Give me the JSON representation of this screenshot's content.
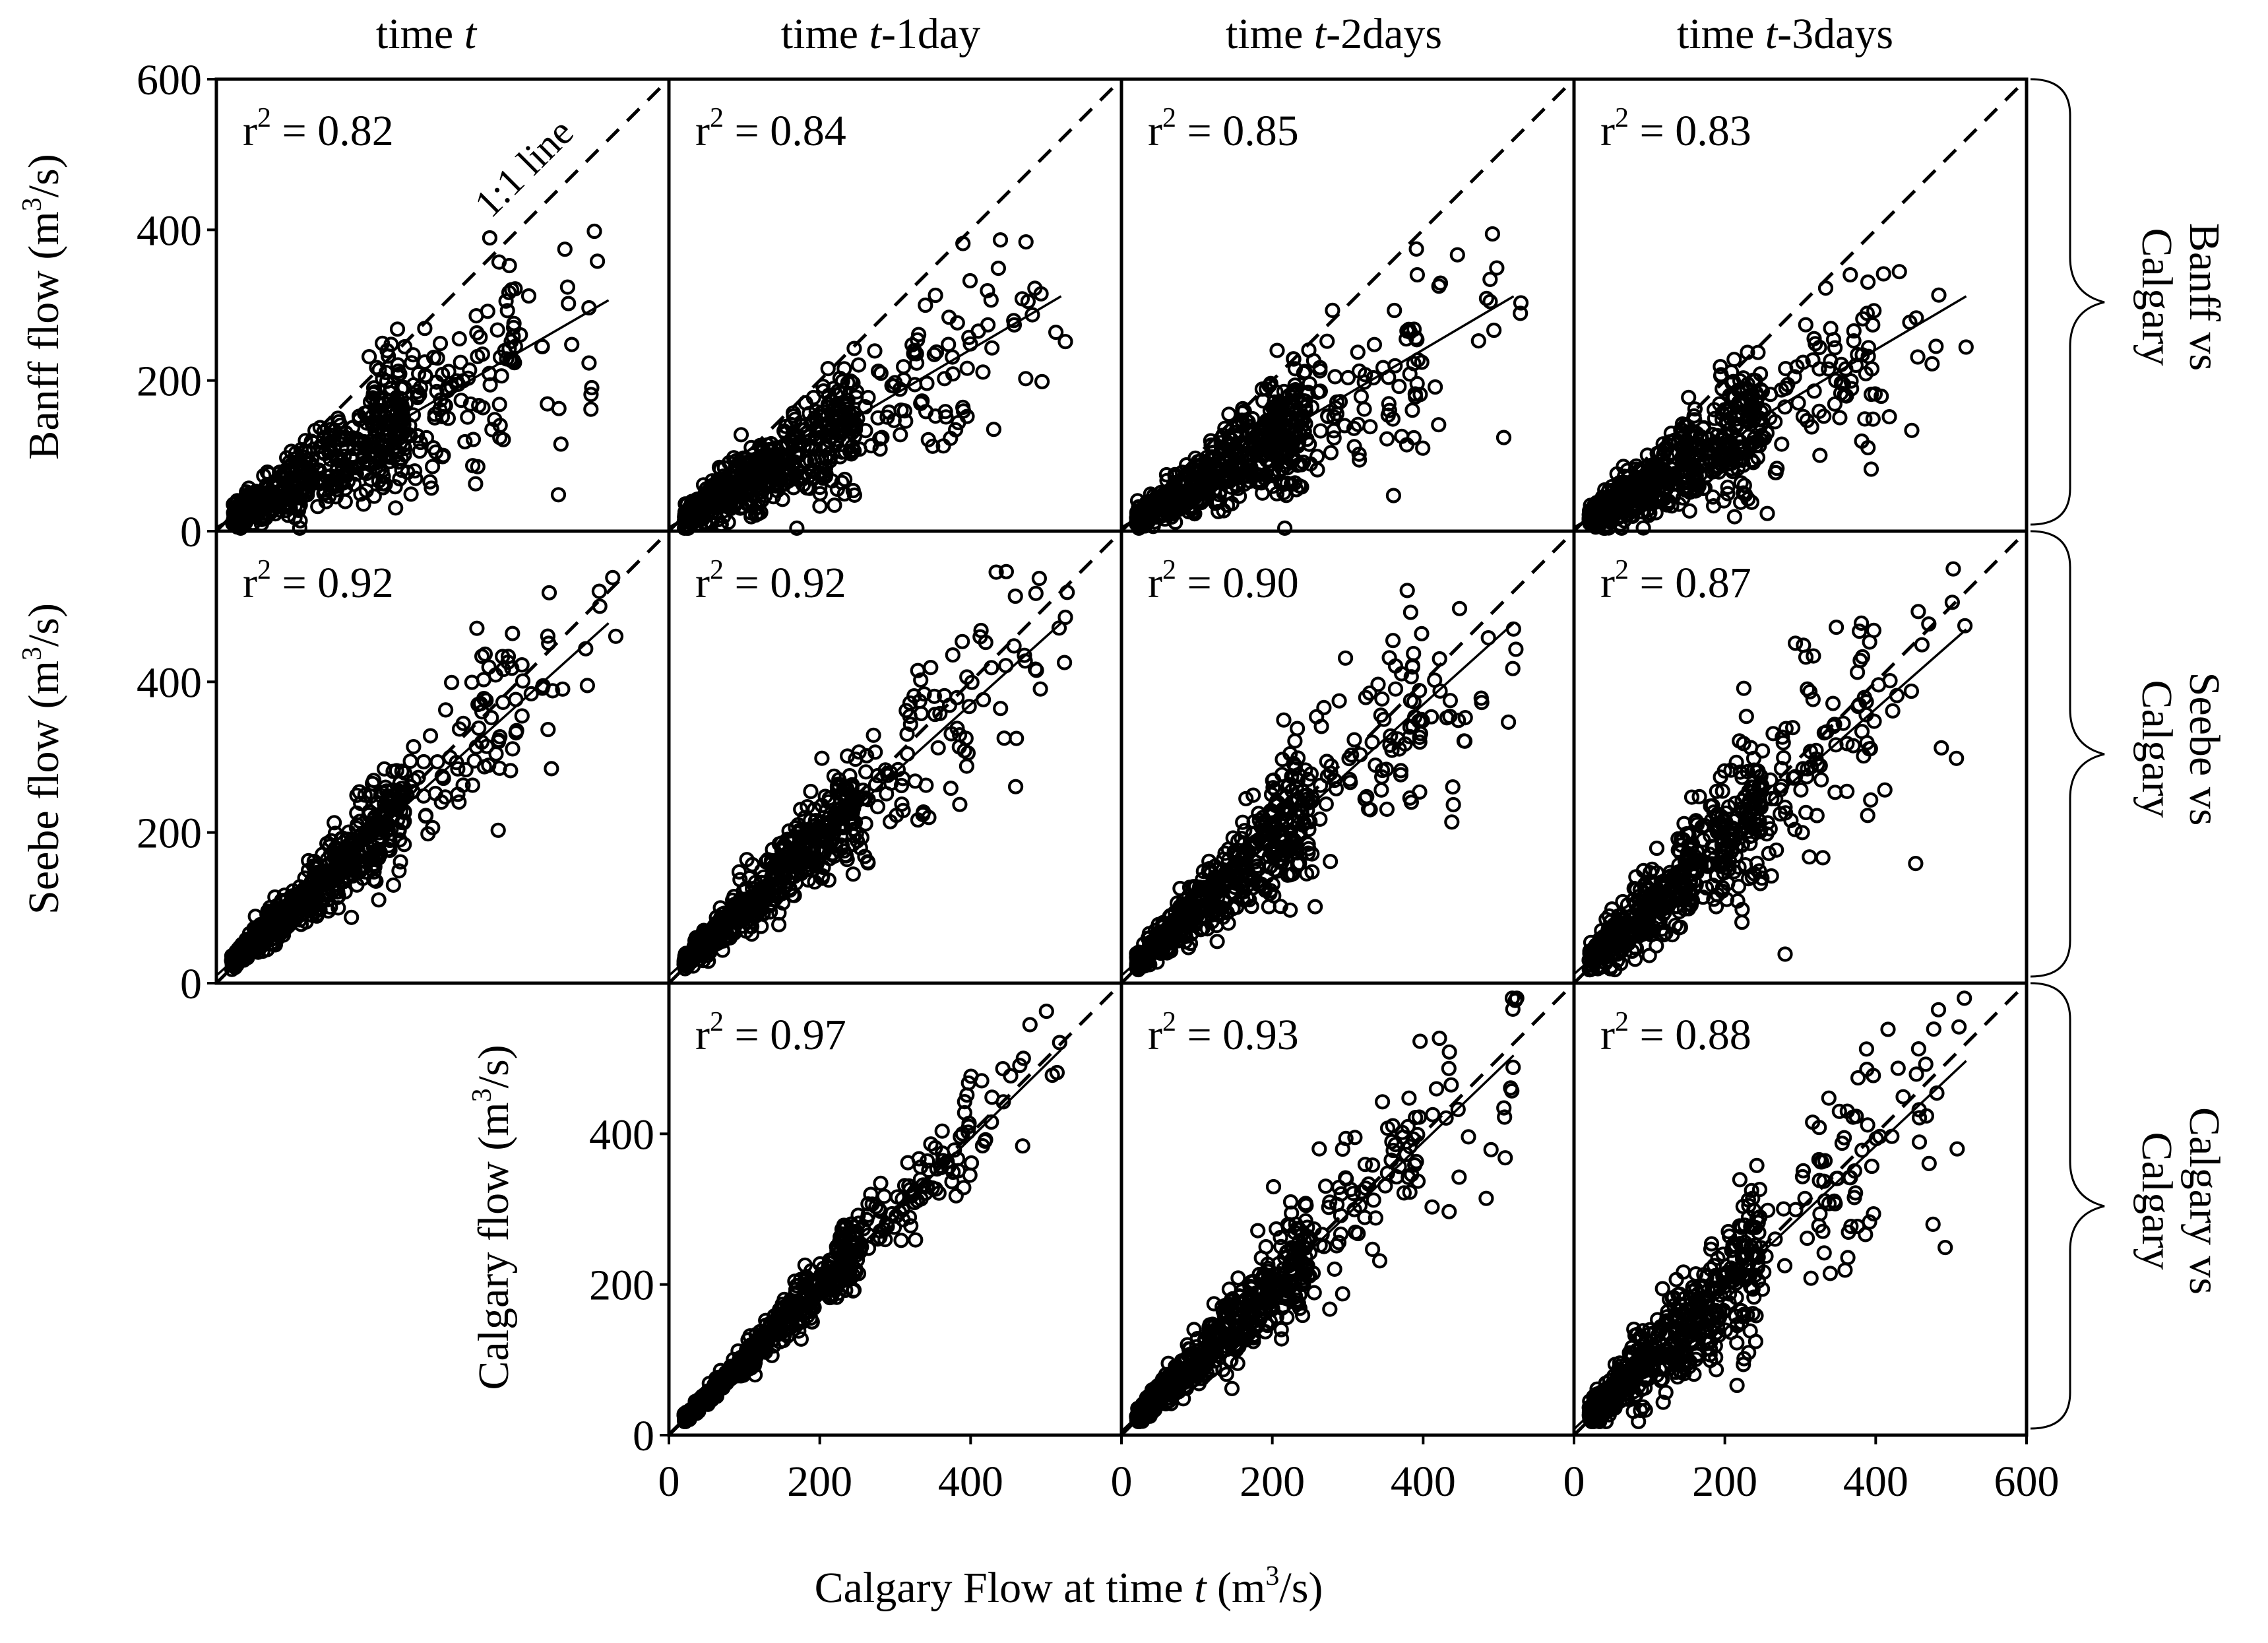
{
  "chart_data": {
    "type": "scatter",
    "title": "",
    "column_headers": [
      {
        "prefix": "time ",
        "italic": "t",
        "suffix": ""
      },
      {
        "prefix": "time ",
        "italic": "t",
        "suffix": "-1day"
      },
      {
        "prefix": "time ",
        "italic": "t",
        "suffix": "-2days"
      },
      {
        "prefix": "time ",
        "italic": "t",
        "suffix": "-3days"
      }
    ],
    "row_labels": [
      {
        "line1": "Banff vs",
        "line2": "Calgary"
      },
      {
        "line1": "Seebe vs",
        "line2": "Calgary"
      },
      {
        "line1": "Calgary vs",
        "line2": "Calgary"
      }
    ],
    "y_axis_labels": [
      {
        "pre": "Banff flow (m",
        "sup": "3",
        "post": "/s)"
      },
      {
        "pre": "Seebe flow (m",
        "sup": "3",
        "post": "/s)"
      },
      {
        "pre": "Calgary flow (m",
        "sup": "3",
        "post": "/s)"
      }
    ],
    "x_axis_label": {
      "pre": "Calgary Flow at time ",
      "italic": "t",
      "mid": " (m",
      "sup": "3",
      "post": "/s)"
    },
    "xlim": [
      0,
      600
    ],
    "ylim": [
      0,
      600
    ],
    "x_ticks": [
      0,
      200,
      400,
      600
    ],
    "y_ticks": [
      0,
      200,
      400,
      600
    ],
    "r2_prefix": "r",
    "r2_sup": "2",
    "one_to_one_label": "1:1 line",
    "panels": [
      {
        "row": 0,
        "col": 0,
        "r2": "= 0.82",
        "slope": 0.58,
        "intercept": 5,
        "spread": 0.3,
        "fit_xmax": 520
      },
      {
        "row": 0,
        "col": 1,
        "r2": "= 0.84",
        "slope": 0.59,
        "intercept": 5,
        "spread": 0.28,
        "fit_xmax": 520
      },
      {
        "row": 0,
        "col": 2,
        "r2": "= 0.85",
        "slope": 0.59,
        "intercept": 5,
        "spread": 0.28,
        "fit_xmax": 520
      },
      {
        "row": 0,
        "col": 3,
        "r2": "= 0.83",
        "slope": 0.59,
        "intercept": 5,
        "spread": 0.3,
        "fit_xmax": 520
      },
      {
        "row": 1,
        "col": 0,
        "r2": "= 0.92",
        "slope": 0.9,
        "intercept": 10,
        "spread": 0.16,
        "fit_xmax": 520
      },
      {
        "row": 1,
        "col": 1,
        "r2": "= 0.92",
        "slope": 0.9,
        "intercept": 10,
        "spread": 0.16,
        "fit_xmax": 520
      },
      {
        "row": 1,
        "col": 2,
        "r2": "= 0.90",
        "slope": 0.9,
        "intercept": 10,
        "spread": 0.2,
        "fit_xmax": 520
      },
      {
        "row": 1,
        "col": 3,
        "r2": "= 0.87",
        "slope": 0.88,
        "intercept": 12,
        "spread": 0.24,
        "fit_xmax": 520
      },
      {
        "row": 2,
        "col": 1,
        "r2": "= 0.97",
        "slope": 0.98,
        "intercept": 2,
        "spread": 0.09,
        "fit_xmax": 520
      },
      {
        "row": 2,
        "col": 2,
        "r2": "= 0.93",
        "slope": 0.96,
        "intercept": 5,
        "spread": 0.16,
        "fit_xmax": 520
      },
      {
        "row": 2,
        "col": 3,
        "r2": "= 0.88",
        "slope": 0.94,
        "intercept": 8,
        "spread": 0.22,
        "fit_xmax": 520
      }
    ]
  }
}
